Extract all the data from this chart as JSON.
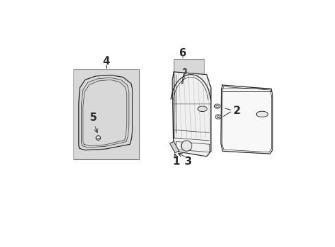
{
  "background_color": "#ffffff",
  "fig_width": 4.89,
  "fig_height": 3.6,
  "dpi": 100,
  "line_color": "#2a2a2a",
  "shade_color": "#d8d8d8",
  "label_fontsize": 10,
  "callout_color": "#333333"
}
